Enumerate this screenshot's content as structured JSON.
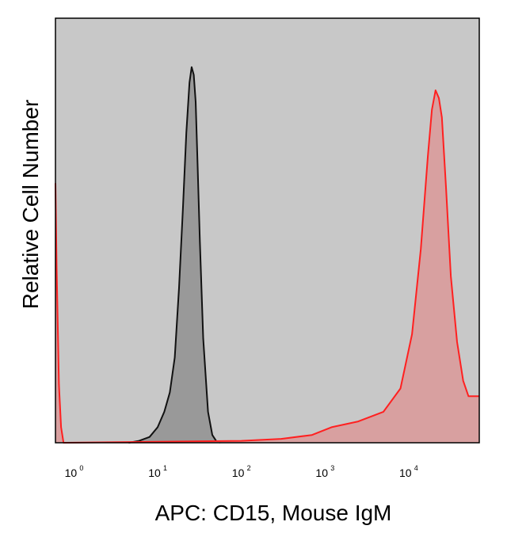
{
  "chart_data": {
    "type": "area",
    "xlabel": "APC: CD15, Mouse IgM",
    "ylabel": "Relative Cell Number",
    "x_scale": "log",
    "xlim": [
      0.6,
      70000
    ],
    "ylim": [
      0,
      1.0
    ],
    "grid": false,
    "plot_background": "#c8c8c8",
    "x_ticks": [
      {
        "base": "10",
        "exp": "0",
        "value": 1
      },
      {
        "base": "10",
        "exp": "1",
        "value": 10
      },
      {
        "base": "10",
        "exp": "2",
        "value": 100
      },
      {
        "base": "10",
        "exp": "3",
        "value": 1000
      },
      {
        "base": "10",
        "exp": "4",
        "value": 10000
      }
    ],
    "series": [
      {
        "color": "#111111",
        "fill": "#999999",
        "x": [
          4.5,
          6,
          8,
          10,
          12,
          14,
          16,
          18,
          20,
          22,
          24,
          25.5,
          27,
          28.5,
          30,
          32,
          35,
          40,
          45,
          50,
          56
        ],
        "y": [
          0.0,
          0.005,
          0.015,
          0.04,
          0.08,
          0.13,
          0.22,
          0.4,
          0.6,
          0.8,
          0.93,
          0.97,
          0.95,
          0.88,
          0.72,
          0.52,
          0.27,
          0.08,
          0.02,
          0.005,
          0.0
        ]
      },
      {
        "color": "#ff2020",
        "fill": "#d8a0a0",
        "x": [
          0.6,
          0.62,
          0.66,
          0.7,
          0.75,
          100,
          300,
          700,
          1200,
          2500,
          5000,
          8000,
          11000,
          14000,
          17000,
          19000,
          21000,
          23000,
          25000,
          28000,
          32000,
          38000,
          45000,
          52000,
          60000,
          70000
        ],
        "y": [
          0.67,
          0.45,
          0.15,
          0.04,
          0.0,
          0.005,
          0.01,
          0.02,
          0.04,
          0.055,
          0.08,
          0.14,
          0.28,
          0.5,
          0.74,
          0.86,
          0.91,
          0.89,
          0.84,
          0.66,
          0.43,
          0.26,
          0.16,
          0.12,
          0.12,
          0.12
        ]
      }
    ]
  }
}
